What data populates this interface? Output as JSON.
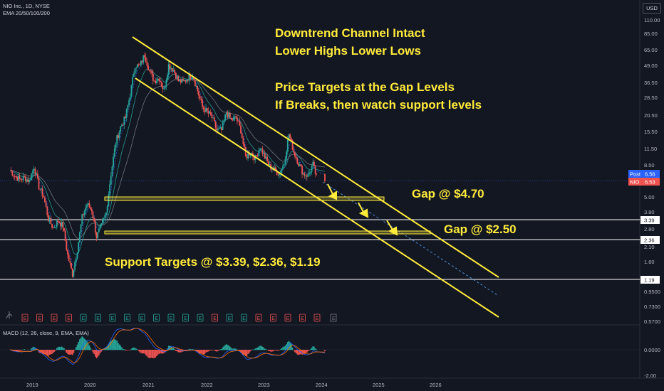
{
  "header": {
    "symbol_line": "NIO Inc., 1D, NYSE",
    "ema_line": "EMA 20/50/100/200",
    "currency": "USD"
  },
  "annotations": {
    "line1": "Downtrend Channel Intact",
    "line2": "Lower Highs Lower Lows",
    "line3": "Price Targets at the Gap Levels",
    "line4": "If Breaks, then watch support levels",
    "gap1": "Gap @ $4.70",
    "gap2": "Gap @ $2.50",
    "support": "Support Targets @ $3.39, $2.36, $1.19"
  },
  "price_badges": {
    "post_label": "Post",
    "post_value": "6.56",
    "nio_label": "NIO",
    "nio_value": "6.53"
  },
  "macd_label": "MACD (12, 26, close, 9, EMA, EMA)",
  "earnings_marker": "E",
  "colors": {
    "background": "#131722",
    "annotation": "#ffeb3b",
    "up": "#26a69a",
    "down": "#ef5350",
    "post_badge": "#2962ff"
  },
  "chart_data": {
    "type": "line",
    "y_scale": "log",
    "y_ticks": [
      "110.00",
      "85.00",
      "65.00",
      "49.00",
      "36.50",
      "28.50",
      "20.50",
      "15.50",
      "11.50",
      "8.50",
      "5.00",
      "3.80",
      "2.80",
      "2.10",
      "1.60",
      "0.9500",
      "0.7300",
      "0.5700"
    ],
    "support_levels": [
      "3.39",
      "2.36",
      "1.19"
    ],
    "x_ticks": [
      "2019",
      "2020",
      "2021",
      "2022",
      "2023",
      "2024",
      "2025",
      "2026"
    ],
    "macd_ticks": [
      "0.0000",
      "-2.00"
    ],
    "price_path": [
      [
        "2018-09",
        8.0
      ],
      [
        "2018-10",
        7.2
      ],
      [
        "2018-11",
        6.8
      ],
      [
        "2018-12",
        7.0
      ],
      [
        "2019-01",
        6.6
      ],
      [
        "2019-02",
        8.5
      ],
      [
        "2019-03",
        6.0
      ],
      [
        "2019-04",
        5.0
      ],
      [
        "2019-05",
        3.4
      ],
      [
        "2019-06",
        2.9
      ],
      [
        "2019-07",
        3.3
      ],
      [
        "2019-08",
        3.0
      ],
      [
        "2019-09",
        1.8
      ],
      [
        "2019-10",
        1.3
      ],
      [
        "2019-11",
        2.0
      ],
      [
        "2019-12",
        3.5
      ],
      [
        "2020-01",
        4.4
      ],
      [
        "2020-02",
        4.0
      ],
      [
        "2020-03",
        2.5
      ],
      [
        "2020-04",
        3.0
      ],
      [
        "2020-05",
        3.8
      ],
      [
        "2020-06",
        7.5
      ],
      [
        "2020-07",
        13.0
      ],
      [
        "2020-08",
        17.0
      ],
      [
        "2020-09",
        20.0
      ],
      [
        "2020-10",
        30.0
      ],
      [
        "2020-11",
        50.0
      ],
      [
        "2020-12",
        49.0
      ],
      [
        "2021-01",
        60.0
      ],
      [
        "2021-02",
        45.0
      ],
      [
        "2021-03",
        38.0
      ],
      [
        "2021-04",
        40.0
      ],
      [
        "2021-05",
        32.0
      ],
      [
        "2021-06",
        50.0
      ],
      [
        "2021-07",
        46.0
      ],
      [
        "2021-08",
        38.0
      ],
      [
        "2021-09",
        37.0
      ],
      [
        "2021-10",
        40.0
      ],
      [
        "2021-11",
        42.0
      ],
      [
        "2021-12",
        32.0
      ],
      [
        "2022-01",
        24.0
      ],
      [
        "2022-02",
        22.0
      ],
      [
        "2022-03",
        20.0
      ],
      [
        "2022-04",
        16.0
      ],
      [
        "2022-05",
        16.0
      ],
      [
        "2022-06",
        22.0
      ],
      [
        "2022-07",
        19.0
      ],
      [
        "2022-08",
        20.0
      ],
      [
        "2022-09",
        16.0
      ],
      [
        "2022-10",
        10.0
      ],
      [
        "2022-11",
        11.0
      ],
      [
        "2022-12",
        9.8
      ],
      [
        "2023-01",
        12.0
      ],
      [
        "2023-02",
        10.0
      ],
      [
        "2023-03",
        8.5
      ],
      [
        "2023-04",
        8.0
      ],
      [
        "2023-05",
        7.5
      ],
      [
        "2023-06",
        9.0
      ],
      [
        "2023-07",
        15.0
      ],
      [
        "2023-08",
        11.0
      ],
      [
        "2023-09",
        9.0
      ],
      [
        "2023-10",
        7.5
      ],
      [
        "2023-11",
        7.3
      ],
      [
        "2023-12",
        8.8
      ],
      [
        "2024-01",
        6.56
      ]
    ]
  }
}
